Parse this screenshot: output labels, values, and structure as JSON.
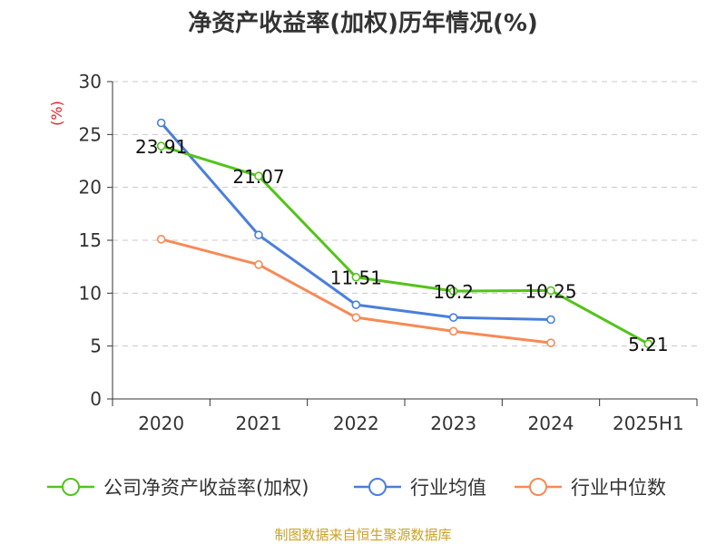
{
  "chart_data": {
    "type": "line",
    "title": "净资产收益率(加权)历年情况(%)",
    "ylabel": "(%)",
    "categories": [
      "2020",
      "2021",
      "2022",
      "2023",
      "2024",
      "2025H1"
    ],
    "ylim": [
      0,
      30
    ],
    "yticks": [
      0,
      5,
      10,
      15,
      20,
      25,
      30
    ],
    "grid": true,
    "legend_position": "bottom",
    "series": [
      {
        "name": "公司净资产收益率(加权)",
        "color": "#52c41a",
        "values": [
          23.91,
          21.07,
          11.51,
          10.2,
          10.25,
          5.21
        ],
        "data_labels": [
          "23.91",
          "21.07",
          "11.51",
          "10.2",
          "10.25",
          "5.21"
        ]
      },
      {
        "name": "行业均值",
        "color": "#4a7fdb",
        "values": [
          26.1,
          15.5,
          8.9,
          7.7,
          7.5,
          null
        ]
      },
      {
        "name": "行业中位数",
        "color": "#f68a55",
        "values": [
          15.1,
          12.7,
          7.7,
          6.4,
          5.3,
          null
        ]
      }
    ]
  },
  "footer": "制图数据来自恒生聚源数据库"
}
